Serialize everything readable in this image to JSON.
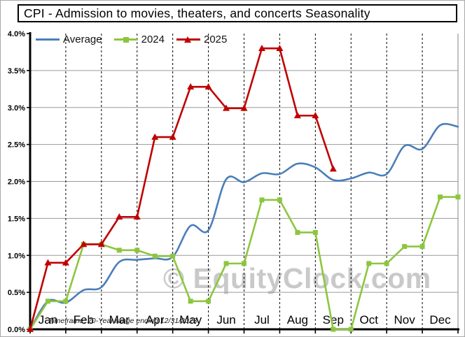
{
  "title": "CPI - Admission to movies, theaters, and concerts Seasonality",
  "footer_note": "Timeframe: 20-Year range ending 12/31/2023",
  "watermark": "© EquityClock.com",
  "legend": {
    "items": [
      {
        "label": "Average",
        "color": "#4A7EBB",
        "marker": "none"
      },
      {
        "label": "2024",
        "color": "#8CC63F",
        "marker": "square"
      },
      {
        "label": "2025",
        "color": "#C00000",
        "marker": "triangle"
      }
    ]
  },
  "colors": {
    "average_line": "#4A7EBB",
    "line_2024": "#8CC63F",
    "line_2025": "#C00000",
    "gridline": "#9a9a9a",
    "month_gridline": "#000000",
    "axis": "#000000",
    "watermark_gray": "#c9c9c9"
  },
  "chart_data": {
    "type": "line",
    "title": "CPI - Admission to movies, theaters, and concerts Seasonality",
    "xlabel": "",
    "ylabel": "",
    "ylim": [
      0.0,
      4.0
    ],
    "ytick_step": 0.5,
    "ytick_labels": [
      "0.0%",
      "0.5%",
      "1.0%",
      "1.5%",
      "2.0%",
      "2.5%",
      "3.0%",
      "3.5%",
      "4.0%"
    ],
    "categories": [
      "Jan",
      "Feb",
      "Mar",
      "Apr",
      "May",
      "Jun",
      "Jul",
      "Aug",
      "Sep",
      "Oct",
      "Nov",
      "Dec"
    ],
    "x_unit": "month index 0-12, semi-monthly data points",
    "grid": {
      "horizontal": "solid",
      "vertical": "dashed"
    },
    "legend_position": "top-left-inside",
    "series": [
      {
        "name": "Average",
        "color": "#4A7EBB",
        "marker": "none",
        "smooth": true,
        "x": [
          0,
          0.5,
          1,
          1.5,
          2,
          2.5,
          3,
          3.5,
          4,
          4.5,
          5,
          5.5,
          6,
          6.5,
          7,
          7.5,
          8,
          8.5,
          9,
          9.5,
          10,
          10.5,
          11,
          11.5,
          12
        ],
        "values": [
          0.0,
          0.38,
          0.36,
          0.53,
          0.57,
          0.91,
          0.94,
          0.96,
          0.98,
          1.4,
          1.34,
          2.03,
          1.99,
          2.11,
          2.1,
          2.24,
          2.19,
          2.02,
          2.04,
          2.12,
          2.1,
          2.48,
          2.44,
          2.76,
          2.74
        ]
      },
      {
        "name": "2024",
        "color": "#8CC63F",
        "marker": "square",
        "smooth": false,
        "x": [
          0,
          0.5,
          1,
          1.5,
          2,
          2.5,
          3,
          3.5,
          4,
          4.5,
          5,
          5.5,
          6,
          6.5,
          7,
          7.5,
          8,
          8.5,
          9,
          9.5,
          10,
          10.5,
          11,
          11.5,
          12
        ],
        "values": [
          0.0,
          0.38,
          0.38,
          1.15,
          1.15,
          1.07,
          1.07,
          0.99,
          0.99,
          0.38,
          0.38,
          0.89,
          0.89,
          1.75,
          1.75,
          1.31,
          1.31,
          0.0,
          0.0,
          0.89,
          0.89,
          1.12,
          1.12,
          1.79,
          1.79
        ]
      },
      {
        "name": "2025",
        "color": "#C00000",
        "marker": "triangle",
        "smooth": false,
        "x": [
          0,
          0.5,
          1,
          1.5,
          2,
          2.5,
          3,
          3.5,
          4,
          4.5,
          5,
          5.5,
          6,
          6.5,
          7,
          7.5,
          8,
          8.5
        ],
        "values": [
          0.0,
          0.9,
          0.9,
          1.15,
          1.15,
          1.52,
          1.52,
          2.6,
          2.6,
          3.28,
          3.28,
          2.99,
          2.99,
          3.8,
          3.8,
          2.89,
          2.89,
          2.17
        ]
      }
    ]
  }
}
